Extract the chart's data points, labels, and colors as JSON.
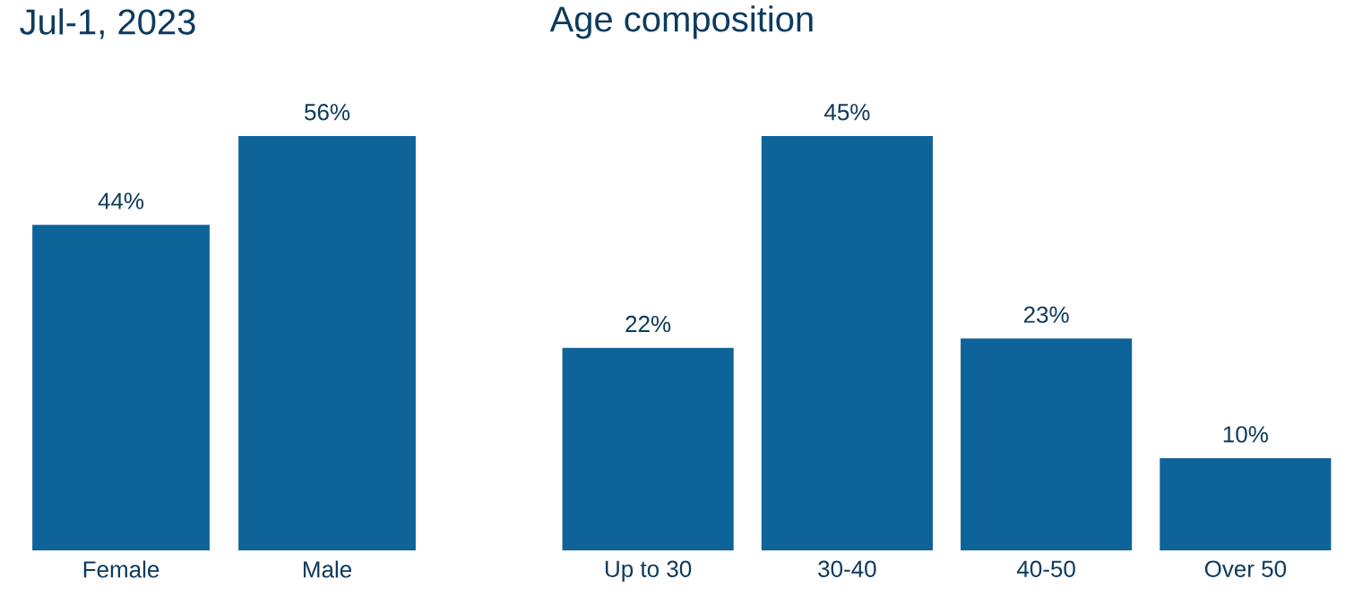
{
  "chart_data": [
    {
      "type": "bar",
      "title": "Jul-1, 2023",
      "categories": [
        "Female",
        "Male"
      ],
      "values": [
        44,
        56
      ],
      "value_labels": [
        "44%",
        "56%"
      ],
      "color": "#0e6399"
    },
    {
      "type": "bar",
      "title": "Age composition",
      "categories": [
        "Up to 30",
        "30-40",
        "40-50",
        "Over 50"
      ],
      "values": [
        22,
        45,
        23,
        10
      ],
      "value_labels": [
        "22%",
        "45%",
        "23%",
        "10%"
      ],
      "color": "#0e6399"
    }
  ]
}
